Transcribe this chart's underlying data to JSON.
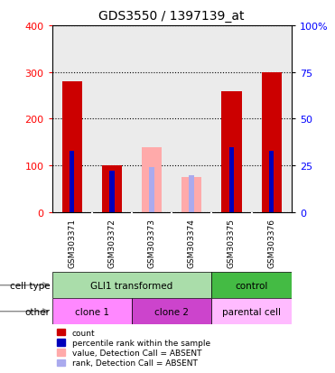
{
  "title": "GDS3550 / 1397139_at",
  "samples": [
    "GSM303371",
    "GSM303372",
    "GSM303373",
    "GSM303374",
    "GSM303375",
    "GSM303376"
  ],
  "count_values": [
    280,
    100,
    0,
    0,
    258,
    300
  ],
  "percentile_values": [
    33,
    22,
    0,
    0,
    35,
    33
  ],
  "absent_value_values": [
    0,
    0,
    140,
    75,
    0,
    0
  ],
  "absent_rank_values": [
    0,
    0,
    24,
    20,
    0,
    0
  ],
  "count_color": "#cc0000",
  "percentile_color": "#0000bb",
  "absent_value_color": "#ffaaaa",
  "absent_rank_color": "#aaaaee",
  "ylim_left": [
    0,
    400
  ],
  "ylim_right": [
    0,
    100
  ],
  "yticks_left": [
    0,
    100,
    200,
    300,
    400
  ],
  "yticks_right": [
    0,
    25,
    50,
    75,
    100
  ],
  "yticklabels_right": [
    "0",
    "25",
    "50",
    "75",
    "100%"
  ],
  "bar_width": 0.5,
  "cell_type_groups": [
    {
      "start": 0,
      "end": 4,
      "label": "GLI1 transformed",
      "color": "#aaddaa"
    },
    {
      "start": 4,
      "end": 6,
      "label": "control",
      "color": "#44bb44"
    }
  ],
  "other_groups": [
    {
      "start": 0,
      "end": 2,
      "label": "clone 1",
      "color": "#ff88ff"
    },
    {
      "start": 2,
      "end": 4,
      "label": "clone 2",
      "color": "#cc44cc"
    },
    {
      "start": 4,
      "end": 6,
      "label": "parental cell",
      "color": "#ffbbff"
    }
  ],
  "legend_items": [
    {
      "label": "count",
      "color": "#cc0000"
    },
    {
      "label": "percentile rank within the sample",
      "color": "#0000bb"
    },
    {
      "label": "value, Detection Call = ABSENT",
      "color": "#ffaaaa"
    },
    {
      "label": "rank, Detection Call = ABSENT",
      "color": "#aaaaee"
    }
  ],
  "cell_type_label": "cell type",
  "other_label": "other",
  "plot_bg": "#e8e8e8",
  "grid_color": "black"
}
